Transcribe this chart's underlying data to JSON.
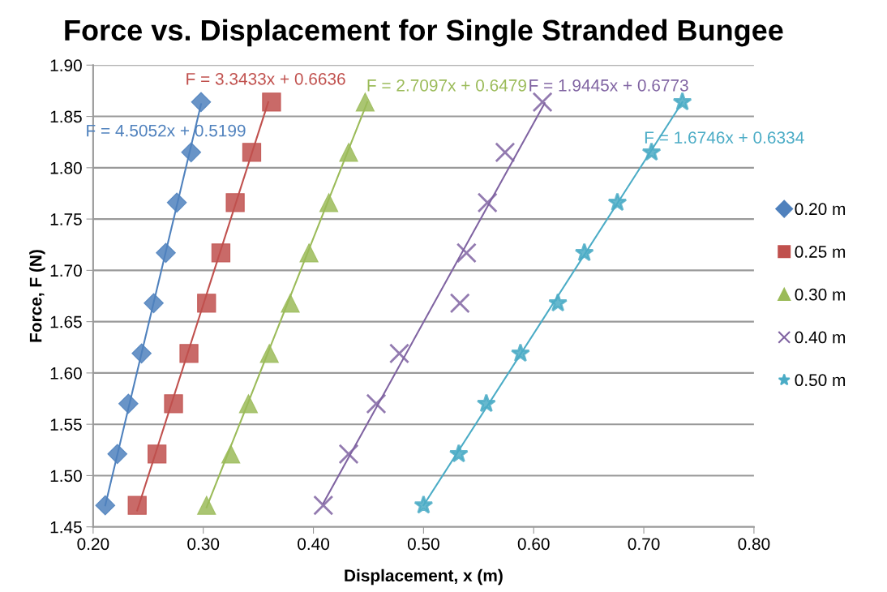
{
  "chart_data": {
    "type": "scatter",
    "title": "Force vs. Displacement for Single Stranded Bungee",
    "xlabel": "Displacement, x (m)",
    "ylabel": "Force, F (N)",
    "xlim": [
      0.2,
      0.8
    ],
    "xticks": [
      {
        "value": 0.2,
        "label": "0.20"
      },
      {
        "value": 0.3,
        "label": "0.30"
      },
      {
        "value": 0.4,
        "label": "0.40"
      },
      {
        "value": 0.5,
        "label": "0.50"
      },
      {
        "value": 0.6,
        "label": "0.60"
      },
      {
        "value": 0.7,
        "label": "0.70"
      },
      {
        "value": 0.8,
        "label": "0.80"
      }
    ],
    "ylim": [
      1.45,
      1.9
    ],
    "yticks": [
      {
        "value": 1.45,
        "label": "1.45"
      },
      {
        "value": 1.5,
        "label": "1.50"
      },
      {
        "value": 1.55,
        "label": "1.55"
      },
      {
        "value": 1.6,
        "label": "1.60"
      },
      {
        "value": 1.65,
        "label": "1.65"
      },
      {
        "value": 1.7,
        "label": "1.70"
      },
      {
        "value": 1.75,
        "label": "1.75"
      },
      {
        "value": 1.8,
        "label": "1.80"
      },
      {
        "value": 1.85,
        "label": "1.85"
      },
      {
        "value": 1.9,
        "label": "1.90"
      }
    ],
    "grid": "y",
    "legend": "right",
    "series": [
      {
        "name": "0.20 m",
        "color": "#4f81bd",
        "marker": "diamond",
        "x": [
          0.211,
          0.222,
          0.232,
          0.244,
          0.255,
          0.266,
          0.276,
          0.289,
          0.298
        ],
        "values": [
          1.471,
          1.521,
          1.57,
          1.619,
          1.668,
          1.717,
          1.766,
          1.815,
          1.864
        ]
      },
      {
        "name": "0.25 m",
        "color": "#c0504d",
        "marker": "square",
        "x": [
          0.24,
          0.258,
          0.273,
          0.287,
          0.303,
          0.316,
          0.329,
          0.344,
          0.362
        ],
        "values": [
          1.471,
          1.521,
          1.57,
          1.619,
          1.668,
          1.717,
          1.766,
          1.815,
          1.864
        ]
      },
      {
        "name": "0.30 m",
        "color": "#9bbb59",
        "marker": "triangle",
        "x": [
          0.303,
          0.325,
          0.341,
          0.36,
          0.379,
          0.396,
          0.414,
          0.432,
          0.447
        ],
        "values": [
          1.471,
          1.521,
          1.57,
          1.619,
          1.668,
          1.717,
          1.766,
          1.815,
          1.864
        ]
      },
      {
        "name": "0.40 m",
        "color": "#8064a2",
        "marker": "cross",
        "x": [
          0.409,
          0.432,
          0.457,
          0.478,
          0.533,
          0.539,
          0.558,
          0.574,
          0.608
        ],
        "values": [
          1.471,
          1.521,
          1.57,
          1.619,
          1.668,
          1.717,
          1.766,
          1.815,
          1.864
        ]
      },
      {
        "name": "0.50 m",
        "color": "#4bacc6",
        "marker": "star",
        "x": [
          0.5,
          0.532,
          0.557,
          0.588,
          0.622,
          0.646,
          0.676,
          0.707,
          0.735
        ],
        "values": [
          1.471,
          1.521,
          1.57,
          1.619,
          1.668,
          1.717,
          1.766,
          1.815,
          1.864
        ]
      },
      {
        "type": "line",
        "color": "#4f81bd",
        "x": [
          0.211,
          0.298
        ],
        "values": [
          1.471,
          1.862
        ]
      },
      {
        "type": "line",
        "color": "#c0504d",
        "x": [
          0.24,
          0.359
        ],
        "values": [
          1.466,
          1.864
        ]
      },
      {
        "type": "line",
        "color": "#9bbb59",
        "x": [
          0.303,
          0.449
        ],
        "values": [
          1.469,
          1.864
        ]
      },
      {
        "type": "line",
        "color": "#8064a2",
        "x": [
          0.409,
          0.61
        ],
        "values": [
          1.473,
          1.863
        ]
      },
      {
        "type": "line",
        "color": "#4bacc6",
        "x": [
          0.5,
          0.735
        ],
        "values": [
          1.471,
          1.864
        ]
      }
    ],
    "annotations": [
      "F = 4.5052x + 0.5199",
      "F = 3.3433x + 0.6636",
      "F = 2.7097x + 0.6479",
      "F = 1.9445x + 0.6773",
      "F = 1.6746x + 0.6334"
    ]
  }
}
